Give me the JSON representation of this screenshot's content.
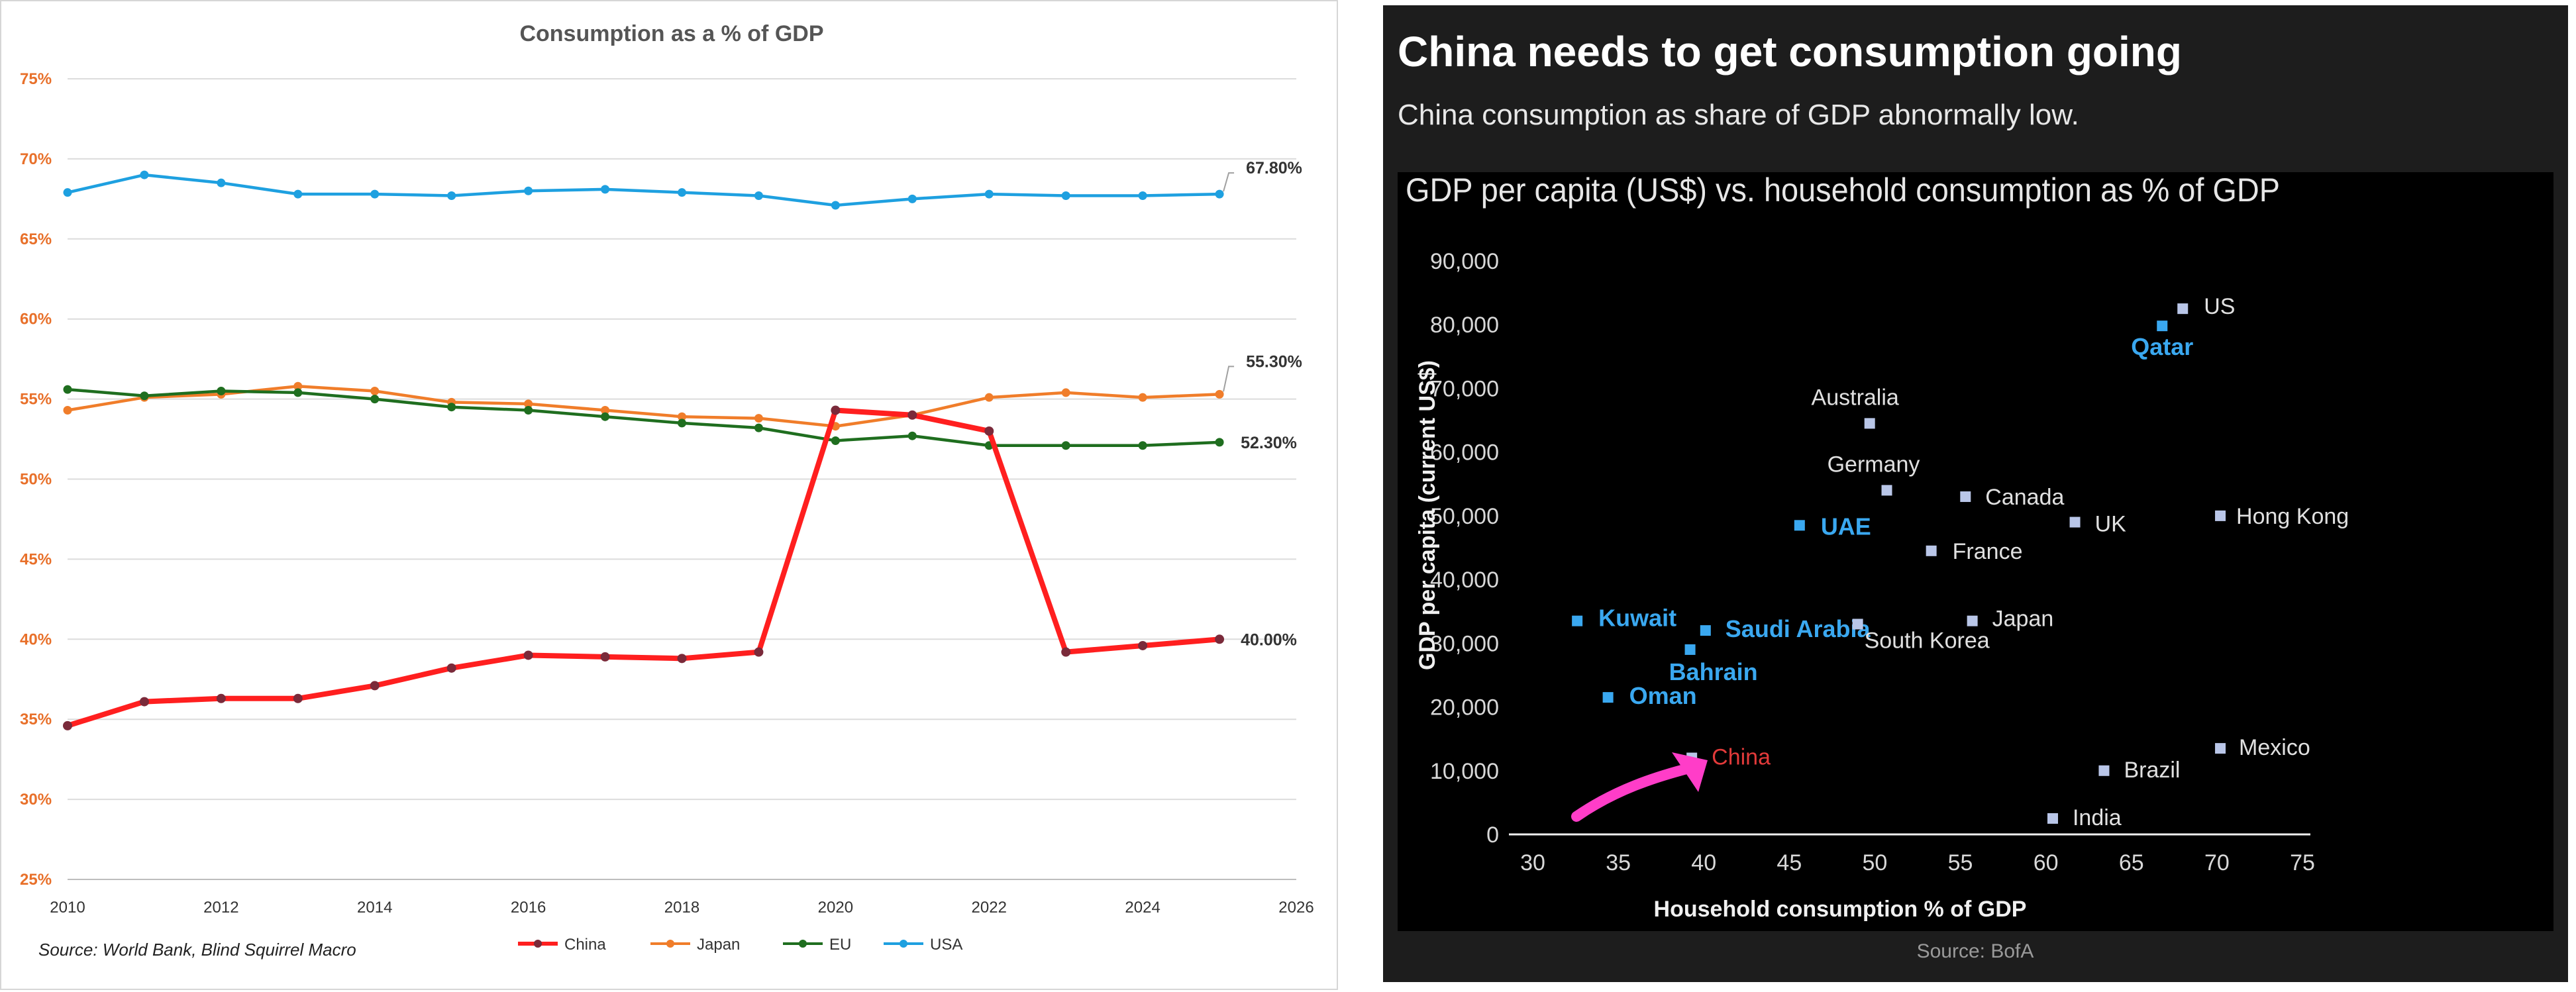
{
  "chart_data": [
    {
      "type": "line",
      "title": "Consumption as a % of GDP",
      "xlabel": "",
      "ylabel": "",
      "xlim": [
        2010,
        2026
      ],
      "ylim": [
        25,
        75
      ],
      "x_ticks": [
        2010,
        2012,
        2014,
        2016,
        2018,
        2020,
        2022,
        2024,
        2026
      ],
      "y_ticks": [
        25,
        30,
        35,
        40,
        45,
        50,
        55,
        60,
        65,
        70,
        75
      ],
      "y_tick_labels": [
        "25%",
        "30%",
        "35%",
        "40%",
        "45%",
        "50%",
        "55%",
        "60%",
        "65%",
        "70%",
        "75%"
      ],
      "grid": "horizontal",
      "legend_position": "bottom",
      "source": "Source:  World Bank, Blind Squirrel Macro",
      "x": [
        2010,
        2011,
        2012,
        2013,
        2014,
        2015,
        2016,
        2017,
        2018,
        2019,
        2020,
        2021,
        2022,
        2023,
        2024,
        2025
      ],
      "series": [
        {
          "name": "China",
          "color": "#ff1f1f",
          "marker_color": "#7a2a3a",
          "values": [
            34.6,
            36.1,
            36.3,
            36.3,
            37.1,
            38.2,
            39.0,
            38.9,
            38.8,
            39.2,
            54.3,
            54.0,
            53.0,
            39.2,
            39.6,
            40.0
          ],
          "end_label": "40.00%"
        },
        {
          "name": "Japan",
          "color": "#f07d2a",
          "marker_color": "#f07d2a",
          "values": [
            54.3,
            55.1,
            55.3,
            55.8,
            55.5,
            54.8,
            54.7,
            54.3,
            53.9,
            53.8,
            53.3,
            54.0,
            55.1,
            55.4,
            55.1,
            55.3
          ],
          "end_label": "55.30%"
        },
        {
          "name": "EU",
          "color": "#1f6e1f",
          "marker_color": "#1f6e1f",
          "values": [
            55.6,
            55.2,
            55.5,
            55.4,
            55.0,
            54.5,
            54.3,
            53.9,
            53.5,
            53.2,
            52.4,
            52.7,
            52.1,
            52.1,
            52.1,
            52.3
          ],
          "end_label": "52.30%"
        },
        {
          "name": "USA",
          "color": "#1ea0e0",
          "marker_color": "#1ea0e0",
          "values": [
            67.9,
            69.0,
            68.5,
            67.8,
            67.8,
            67.7,
            68.0,
            68.1,
            67.9,
            67.7,
            67.1,
            67.5,
            67.8,
            67.7,
            67.7,
            67.8
          ],
          "end_label": "67.80%"
        }
      ]
    },
    {
      "type": "scatter",
      "headline": "China needs to get consumption going",
      "subtitle": "China consumption as share of GDP abnormally low.",
      "title": "GDP per capita (US$) vs. household consumption as % of GDP",
      "xlabel": "Household consumption % of GDP",
      "ylabel": "GDP per capita (current US$)",
      "xlim": [
        30,
        75
      ],
      "ylim": [
        0,
        90000
      ],
      "x_ticks": [
        30,
        35,
        40,
        45,
        50,
        55,
        60,
        65,
        70,
        75
      ],
      "y_ticks": [
        0,
        10000,
        20000,
        30000,
        40000,
        50000,
        60000,
        70000,
        80000,
        90000
      ],
      "y_tick_labels": [
        "0",
        "10,000",
        "20,000",
        "30,000",
        "40,000",
        "50,000",
        "60,000",
        "70,000",
        "80,000",
        "90,000"
      ],
      "source": "Source: BofA",
      "annotation": "arrow-pointing-to-China",
      "colors": {
        "default_point": "#b9c6e8",
        "highlight_point": "#3aa8f0",
        "highlight_label": "#3aa8f0",
        "china_label": "#e23a3a",
        "arrow": "#ff3dc8",
        "text": "#e0e0e0"
      },
      "points": [
        {
          "label": "US",
          "x": 68.0,
          "y": 82500,
          "group": "default"
        },
        {
          "label": "Qatar",
          "x": 66.8,
          "y": 79800,
          "group": "highlight"
        },
        {
          "label": "Australia",
          "x": 49.7,
          "y": 64500,
          "group": "default"
        },
        {
          "label": "Germany",
          "x": 50.7,
          "y": 54000,
          "group": "default"
        },
        {
          "label": "Canada",
          "x": 55.3,
          "y": 53000,
          "group": "default"
        },
        {
          "label": "UK",
          "x": 61.7,
          "y": 49000,
          "group": "default"
        },
        {
          "label": "Hong Kong",
          "x": 70.2,
          "y": 50000,
          "group": "default"
        },
        {
          "label": "UAE",
          "x": 45.6,
          "y": 48500,
          "group": "highlight"
        },
        {
          "label": "France",
          "x": 53.3,
          "y": 44500,
          "group": "default"
        },
        {
          "label": "Kuwait",
          "x": 32.6,
          "y": 33500,
          "group": "highlight"
        },
        {
          "label": "Saudi Arabia",
          "x": 40.1,
          "y": 32000,
          "group": "highlight"
        },
        {
          "label": "Bahrain",
          "x": 39.2,
          "y": 29000,
          "group": "highlight"
        },
        {
          "label": "South Korea",
          "x": 49.0,
          "y": 33000,
          "group": "default"
        },
        {
          "label": "Japan",
          "x": 55.7,
          "y": 33500,
          "group": "default"
        },
        {
          "label": "Oman",
          "x": 34.4,
          "y": 21500,
          "group": "highlight"
        },
        {
          "label": "China",
          "x": 39.3,
          "y": 12000,
          "group": "china"
        },
        {
          "label": "Mexico",
          "x": 70.2,
          "y": 13500,
          "group": "default"
        },
        {
          "label": "Brazil",
          "x": 63.4,
          "y": 10000,
          "group": "default"
        },
        {
          "label": "India",
          "x": 60.4,
          "y": 2500,
          "group": "default"
        }
      ]
    }
  ]
}
